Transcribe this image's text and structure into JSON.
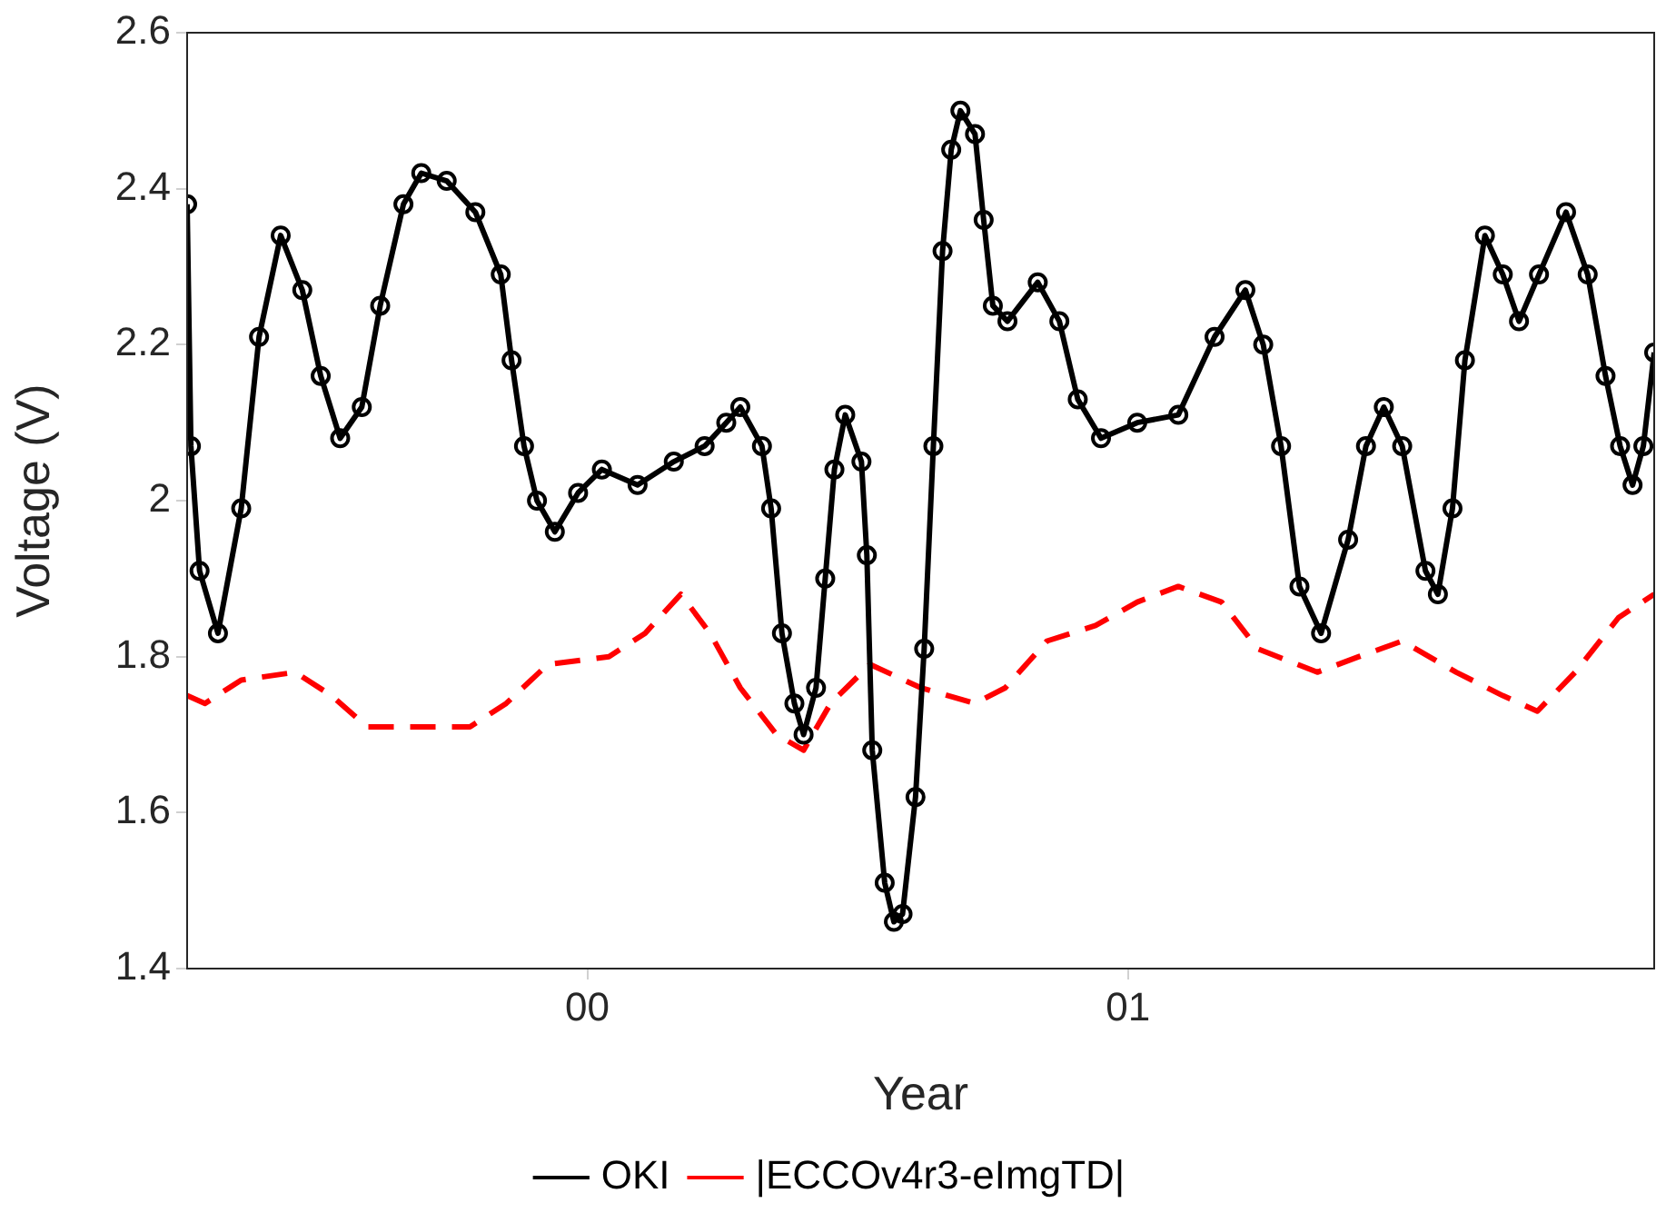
{
  "chart_data": {
    "type": "line",
    "xlabel": "Year",
    "ylabel": "Voltage (V)",
    "xlim": [
      1999.26,
      2001.973
    ],
    "ylim": [
      1.4,
      2.6
    ],
    "xticks": [
      {
        "value": 2000,
        "label": "00"
      },
      {
        "value": 2001,
        "label": "01"
      }
    ],
    "yticks": [
      1.4,
      1.6,
      1.8,
      2,
      2.2,
      2.4,
      2.6
    ],
    "grid": false,
    "legend": "bottom",
    "series": [
      {
        "name": "OKI",
        "color": "#000000",
        "marker": "circle",
        "line_style": "solid",
        "x": [
          1999.26,
          1999.267,
          1999.283,
          1999.317,
          1999.36,
          1999.393,
          1999.433,
          1999.473,
          1999.507,
          1999.543,
          1999.583,
          1999.617,
          1999.66,
          1999.693,
          1999.74,
          1999.793,
          1999.84,
          1999.86,
          1999.883,
          1999.907,
          1999.94,
          1999.983,
          2000.027,
          2000.093,
          2000.16,
          2000.217,
          2000.257,
          2000.283,
          2000.323,
          2000.34,
          2000.36,
          2000.383,
          2000.4,
          2000.423,
          2000.44,
          2000.457,
          2000.477,
          2000.507,
          2000.517,
          2000.527,
          2000.55,
          2000.567,
          2000.583,
          2000.607,
          2000.623,
          2000.64,
          2000.657,
          2000.673,
          2000.69,
          2000.717,
          2000.733,
          2000.75,
          2000.777,
          2000.833,
          2000.873,
          2000.907,
          2000.95,
          2001.017,
          2001.093,
          2001.16,
          2001.217,
          2001.25,
          2001.283,
          2001.317,
          2001.357,
          2001.407,
          2001.44,
          2001.473,
          2001.507,
          2001.55,
          2001.573,
          2001.6,
          2001.623,
          2001.66,
          2001.693,
          2001.723,
          2001.76,
          2001.81,
          2001.85,
          2001.883,
          2001.91,
          2001.933,
          2001.953,
          2001.973
        ],
        "values": [
          2.38,
          2.07,
          1.91,
          1.83,
          1.99,
          2.21,
          2.34,
          2.27,
          2.16,
          2.08,
          2.12,
          2.25,
          2.38,
          2.42,
          2.41,
          2.37,
          2.29,
          2.18,
          2.07,
          2.0,
          1.96,
          2.01,
          2.04,
          2.02,
          2.05,
          2.07,
          2.1,
          2.12,
          2.07,
          1.99,
          1.83,
          1.74,
          1.7,
          1.76,
          1.9,
          2.04,
          2.11,
          2.05,
          1.93,
          1.68,
          1.51,
          1.46,
          1.47,
          1.62,
          1.81,
          2.07,
          2.32,
          2.45,
          2.5,
          2.47,
          2.36,
          2.25,
          2.23,
          2.28,
          2.23,
          2.13,
          2.08,
          2.1,
          2.11,
          2.21,
          2.27,
          2.2,
          2.07,
          1.89,
          1.83,
          1.95,
          2.07,
          2.12,
          2.07,
          1.91,
          1.88,
          1.99,
          2.18,
          2.34,
          2.29,
          2.23,
          2.29,
          2.37,
          2.29,
          2.16,
          2.07,
          2.02,
          2.07,
          2.19
        ]
      },
      {
        "name": "|ECCOv4r3-eImgTD|",
        "color": "#ff0000",
        "marker": "none",
        "line_style": "dashed",
        "x": [
          1999.26,
          1999.293,
          1999.36,
          1999.46,
          1999.527,
          1999.593,
          1999.683,
          1999.783,
          1999.85,
          1999.927,
          2000.04,
          2000.107,
          2000.173,
          2000.227,
          2000.283,
          2000.35,
          2000.4,
          2000.45,
          2000.523,
          2000.617,
          2000.717,
          2000.773,
          2000.85,
          2000.94,
          2001.017,
          2001.093,
          2001.173,
          2001.24,
          2001.35,
          2001.427,
          2001.507,
          2001.607,
          2001.693,
          2001.757,
          2001.827,
          2001.907,
          2001.973
        ],
        "values": [
          1.75,
          1.74,
          1.77,
          1.78,
          1.75,
          1.71,
          1.71,
          1.71,
          1.74,
          1.79,
          1.8,
          1.83,
          1.88,
          1.83,
          1.76,
          1.7,
          1.68,
          1.74,
          1.79,
          1.76,
          1.74,
          1.76,
          1.82,
          1.84,
          1.87,
          1.89,
          1.87,
          1.81,
          1.78,
          1.8,
          1.82,
          1.78,
          1.75,
          1.73,
          1.78,
          1.85,
          1.88
        ]
      }
    ]
  }
}
